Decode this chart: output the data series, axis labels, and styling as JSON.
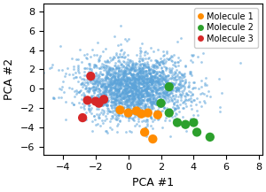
{
  "background_color": "#ffffff",
  "xlabel": "PCA #1",
  "ylabel": "PCA #2",
  "xlim": [
    -5.2,
    8.2
  ],
  "ylim": [
    -6.8,
    8.8
  ],
  "xticks": [
    -4,
    -2,
    0,
    2,
    4,
    6,
    8
  ],
  "yticks": [
    -6,
    -4,
    -2,
    0,
    2,
    4,
    6,
    8
  ],
  "blue_dot_color": "#5ba3d9",
  "blue_dot_alpha": 0.55,
  "blue_dot_size": 4,
  "molecule1_color": "#ff8c00",
  "molecule2_color": "#2ca02c",
  "molecule3_color": "#d62728",
  "molecule_size": 55,
  "molecule1_points": [
    [
      -0.5,
      -2.2
    ],
    [
      0.0,
      -2.5
    ],
    [
      0.5,
      -2.3
    ],
    [
      0.8,
      -2.6
    ],
    [
      1.2,
      -2.5
    ],
    [
      1.8,
      -2.7
    ],
    [
      1.0,
      -4.5
    ],
    [
      1.5,
      -5.2
    ]
  ],
  "molecule2_points": [
    [
      2.0,
      -1.5
    ],
    [
      2.5,
      -2.5
    ],
    [
      3.0,
      -3.5
    ],
    [
      3.5,
      -3.7
    ],
    [
      4.0,
      -3.5
    ],
    [
      4.2,
      -4.5
    ],
    [
      5.0,
      -5.0
    ],
    [
      2.5,
      0.2
    ]
  ],
  "molecule3_points": [
    [
      -2.3,
      1.3
    ],
    [
      -2.5,
      -1.2
    ],
    [
      -1.8,
      -1.5
    ],
    [
      -2.0,
      -1.3
    ],
    [
      -2.8,
      -3.0
    ],
    [
      -1.5,
      -1.1
    ]
  ],
  "legend_entries": [
    "Molecule 1",
    "Molecule 2",
    "Molecule 3"
  ],
  "legend_colors": [
    "#ff8c00",
    "#2ca02c",
    "#d62728"
  ],
  "seed": 42,
  "n_background": 2500,
  "bg_mean_x": 0.3,
  "bg_mean_y": 0.2,
  "bg_std_x": 1.7,
  "bg_std_y": 1.6
}
